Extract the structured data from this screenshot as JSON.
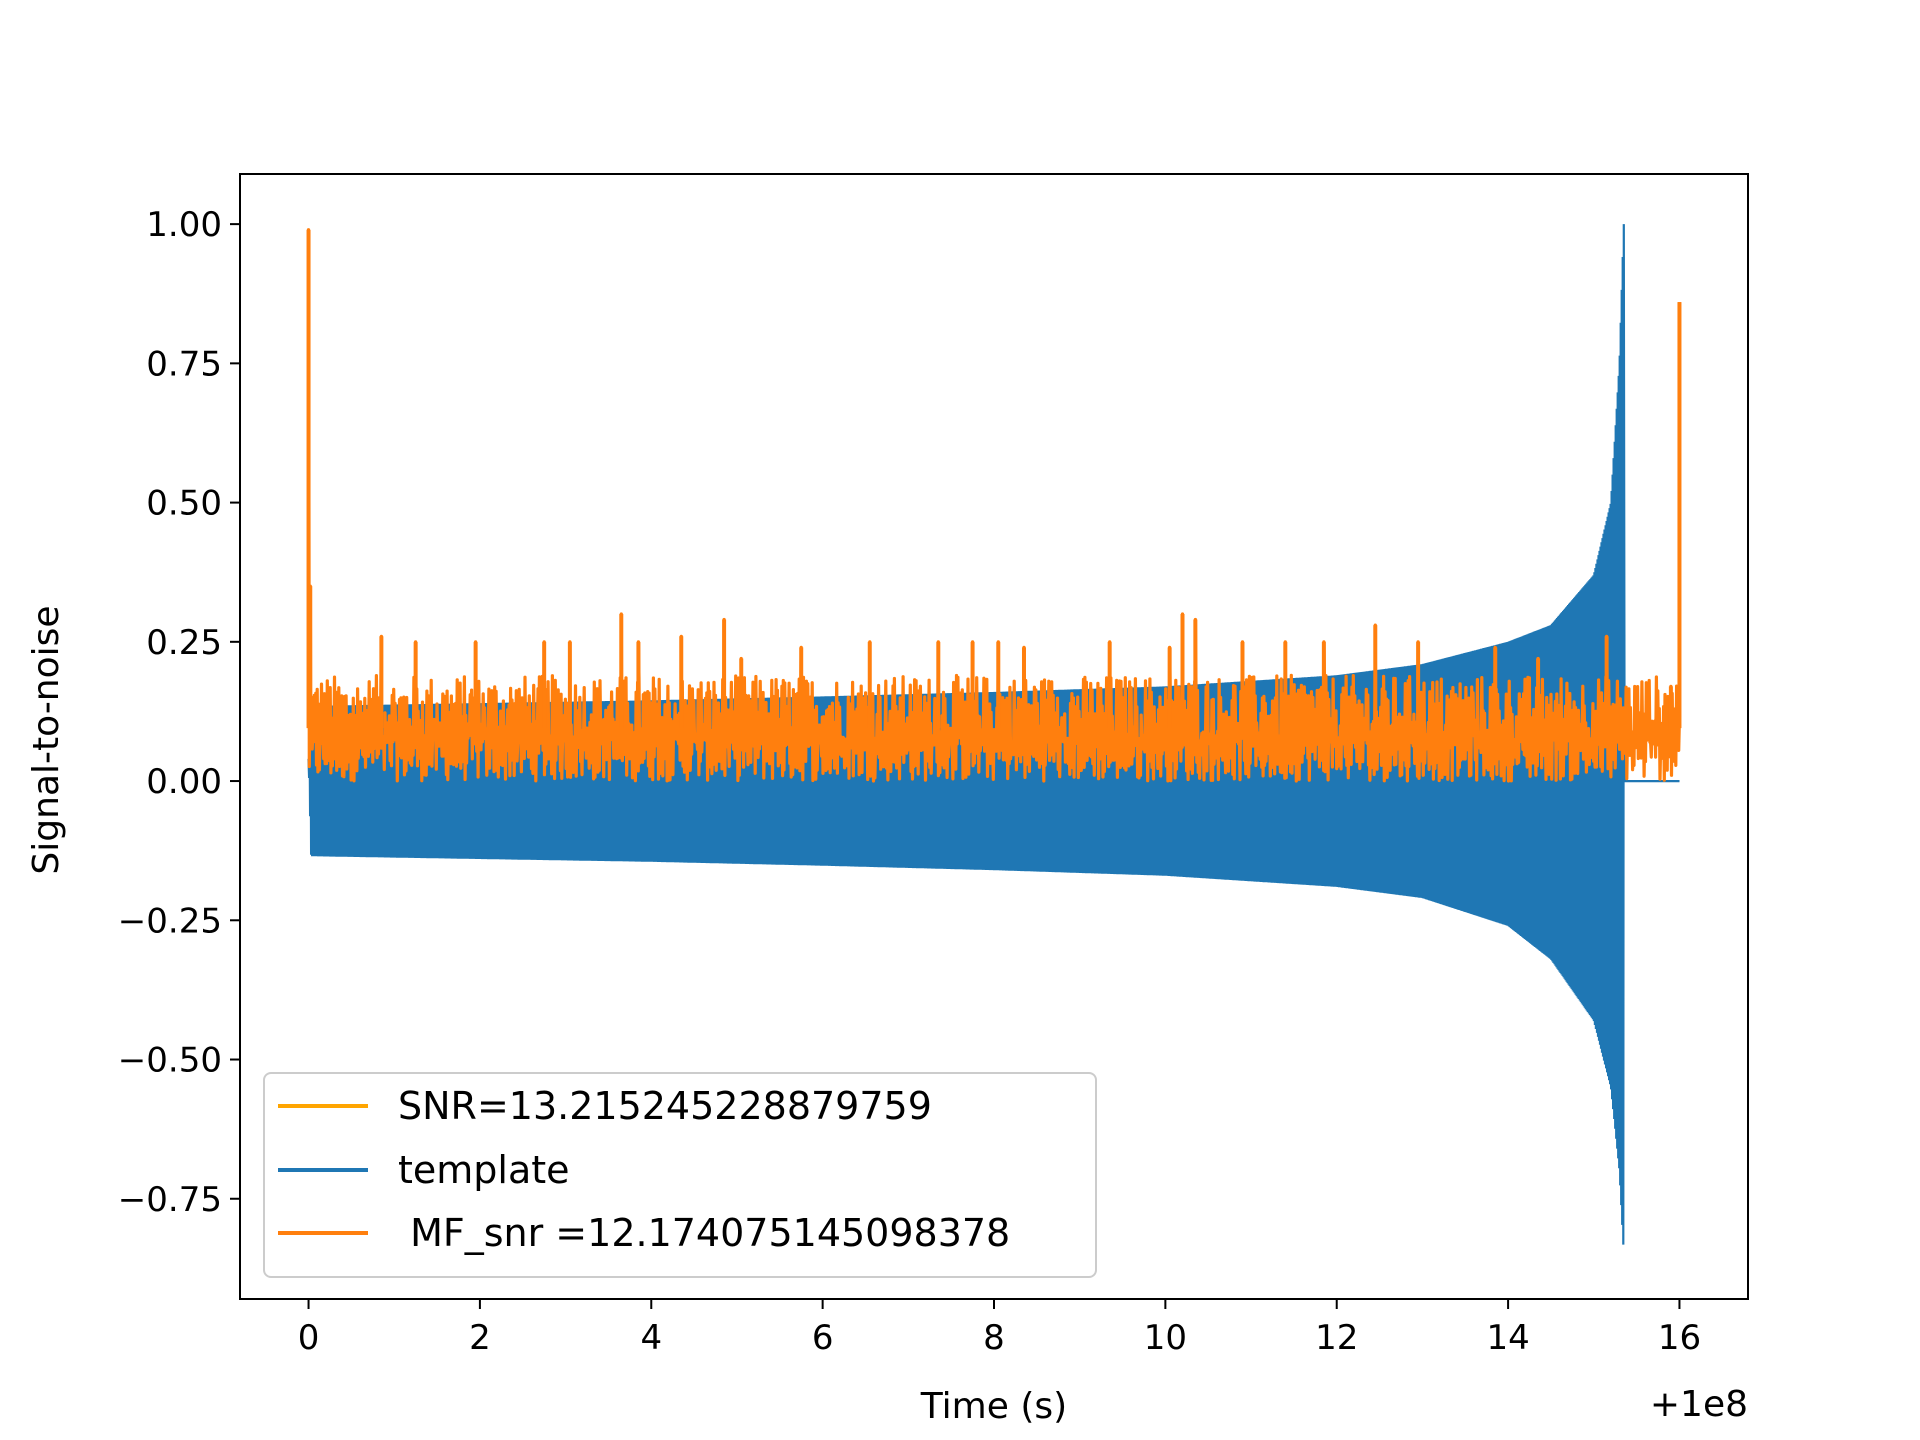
{
  "chart_data": {
    "type": "line",
    "title": "",
    "xlabel": "Time (s)",
    "ylabel": "Signal-to-noise",
    "x_offset_text": "+1e8",
    "xlim": [
      -0.8,
      16.8
    ],
    "ylim": [
      -0.93,
      1.09
    ],
    "xticks": [
      0,
      2,
      4,
      6,
      8,
      10,
      12,
      14,
      16
    ],
    "xtick_labels": [
      "0",
      "2",
      "4",
      "6",
      "8",
      "10",
      "12",
      "14",
      "16"
    ],
    "yticks": [
      -0.75,
      -0.5,
      -0.25,
      0.0,
      0.25,
      0.5,
      0.75,
      1.0
    ],
    "ytick_labels": [
      "−0.75",
      "−0.50",
      "−0.25",
      "0.00",
      "0.25",
      "0.50",
      "0.75",
      "1.00"
    ],
    "grid": false,
    "legend_position": "lower-left",
    "colors": {
      "snr": "#ffa500",
      "template": "#1f77b4",
      "mf_snr": "#ff7f0e"
    },
    "series": [
      {
        "name": "SNR=13.215245228879759",
        "color": "#ffa500",
        "x": [],
        "y": []
      },
      {
        "name": "template",
        "color": "#1f77b4",
        "envelope_x": [
          0.0,
          0.03,
          2,
          4,
          6,
          8,
          10,
          12,
          13,
          14,
          14.5,
          15.0,
          15.2,
          15.3,
          15.35,
          15.36,
          16.0
        ],
        "envelope_upper": [
          0.04,
          0.135,
          0.14,
          0.145,
          0.152,
          0.16,
          0.17,
          0.19,
          0.21,
          0.25,
          0.28,
          0.37,
          0.5,
          0.75,
          1.0,
          0.0,
          0.0
        ],
        "envelope_lower": [
          0.04,
          -0.135,
          -0.14,
          -0.145,
          -0.152,
          -0.16,
          -0.17,
          -0.19,
          -0.21,
          -0.26,
          -0.32,
          -0.43,
          -0.55,
          -0.7,
          -0.85,
          0.0,
          0.0
        ]
      },
      {
        "name": " MF_snr =12.174075145098378",
        "color": "#ff7f0e",
        "spikes_x": [
          0.0,
          0.02,
          0.85,
          1.25,
          1.95,
          2.75,
          3.05,
          3.65,
          3.85,
          4.35,
          4.85,
          5.05,
          5.75,
          6.55,
          7.35,
          7.75,
          8.05,
          8.35,
          9.35,
          10.05,
          10.2,
          10.35,
          10.9,
          11.4,
          11.85,
          12.45,
          12.95,
          13.85,
          14.35,
          15.15,
          15.9,
          16.0
        ],
        "spikes_y": [
          0.99,
          0.35,
          0.26,
          0.25,
          0.25,
          0.25,
          0.25,
          0.3,
          0.25,
          0.26,
          0.29,
          0.22,
          0.24,
          0.25,
          0.25,
          0.25,
          0.25,
          0.24,
          0.25,
          0.24,
          0.3,
          0.29,
          0.25,
          0.25,
          0.25,
          0.28,
          0.25,
          0.24,
          0.22,
          0.26,
          0.17,
          0.86
        ],
        "noise_band": [
          0.0,
          0.19
        ]
      }
    ]
  }
}
